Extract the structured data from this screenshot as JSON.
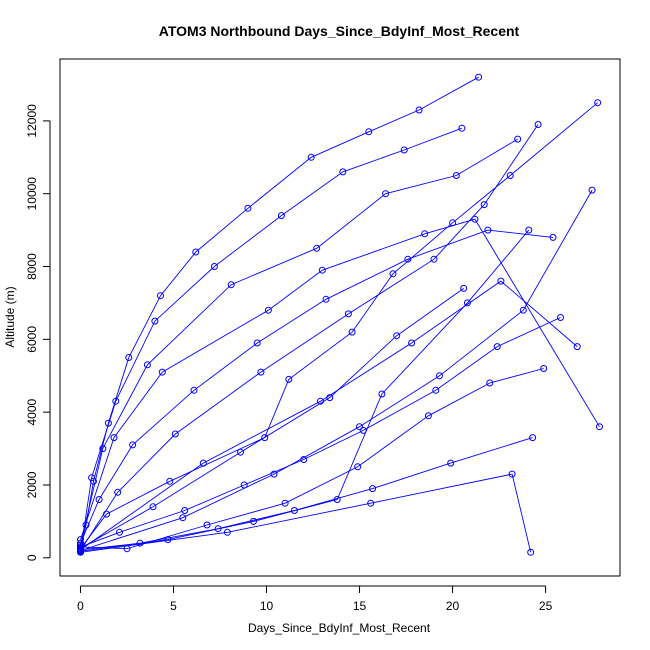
{
  "chart_data": {
    "type": "scatter",
    "title": "ATOM3 Northbound Days_Since_BdyInf_Most_Recent",
    "xlabel": "Days_Since_BdyInf_Most_Recent",
    "ylabel": "Altitude (m)",
    "xlim": [
      -1.1,
      29.0
    ],
    "ylim": [
      -500,
      13700
    ],
    "xticks": [
      0,
      5,
      10,
      15,
      20,
      25
    ],
    "yticks": [
      0,
      2000,
      4000,
      6000,
      8000,
      10000,
      12000
    ],
    "series_color": "#0000ff",
    "marker": "open-circle",
    "connected": true,
    "series": [
      {
        "x": [
          0.0,
          1.4,
          4.8,
          9.9,
          11.2,
          14.6,
          16.8,
          20.0,
          23.1,
          27.8
        ],
        "y": [
          250,
          1200,
          2100,
          3300,
          4900,
          6200,
          7800,
          9200,
          10500,
          12500
        ]
      },
      {
        "x": [
          0.0,
          0.3,
          0.7,
          1.5,
          2.6,
          4.3,
          6.2,
          9.0,
          12.4,
          15.5,
          18.2,
          21.4
        ],
        "y": [
          180,
          900,
          2100,
          3700,
          5500,
          7200,
          8400,
          9600,
          11000,
          11700,
          12300,
          13200
        ]
      },
      {
        "x": [
          0.0,
          2.1,
          5.6,
          8.8,
          12.0,
          15.2,
          19.1,
          22.4,
          25.8
        ],
        "y": [
          300,
          700,
          1300,
          2000,
          2700,
          3500,
          4600,
          5800,
          6600
        ]
      },
      {
        "x": [
          0.0,
          3.2,
          7.4,
          11.5,
          15.7,
          19.9,
          24.3
        ],
        "y": [
          220,
          400,
          800,
          1300,
          1900,
          2600,
          3300
        ]
      },
      {
        "x": [
          0.0,
          1.0,
          2.8,
          6.1,
          9.5,
          13.2,
          17.6,
          21.9,
          25.4
        ],
        "y": [
          400,
          1600,
          3100,
          4600,
          5900,
          7100,
          8200,
          9000,
          8800
        ]
      },
      {
        "x": [
          0.0,
          5.5,
          10.4,
          15.0,
          19.3,
          23.8,
          27.5
        ],
        "y": [
          200,
          1100,
          2300,
          3600,
          5000,
          6800,
          10100
        ]
      },
      {
        "x": [
          0.0,
          0.6,
          1.9,
          4.0,
          7.2,
          10.8,
          14.1,
          17.4,
          20.5
        ],
        "y": [
          160,
          2200,
          4300,
          6500,
          8000,
          9400,
          10600,
          11200,
          11800
        ]
      },
      {
        "x": [
          0.0,
          2.5,
          6.8,
          11.0,
          14.9,
          18.7,
          22.0,
          24.9
        ],
        "y": [
          300,
          250,
          900,
          1500,
          2500,
          3900,
          4800,
          5200
        ]
      },
      {
        "x": [
          0.0,
          4.7,
          9.3,
          13.8,
          16.2,
          20.8,
          24.1
        ],
        "y": [
          180,
          500,
          1000,
          1600,
          4500,
          7000,
          9000
        ]
      },
      {
        "x": [
          0.0,
          1.2,
          3.6,
          8.1,
          12.7,
          16.4,
          20.2,
          23.5
        ],
        "y": [
          350,
          3000,
          5300,
          7500,
          8500,
          10000,
          10500,
          11500
        ]
      },
      {
        "x": [
          0.0,
          6.6,
          12.9,
          17.8,
          22.6,
          26.7
        ],
        "y": [
          220,
          2600,
          4300,
          5900,
          7600,
          5800
        ]
      },
      {
        "x": [
          0.0,
          2.0,
          5.1,
          9.7,
          14.4,
          19.0,
          21.7,
          24.6
        ],
        "y": [
          200,
          1800,
          3400,
          5100,
          6700,
          8200,
          9700,
          11900
        ]
      },
      {
        "x": [
          0.0,
          3.9,
          8.6,
          13.4,
          17.0,
          20.6
        ],
        "y": [
          260,
          1400,
          2900,
          4400,
          6100,
          7400
        ]
      },
      {
        "x": [
          0.0,
          7.9,
          15.6,
          23.2,
          24.2
        ],
        "y": [
          150,
          700,
          1500,
          2300,
          150
        ]
      },
      {
        "x": [
          0.0,
          1.8,
          4.4,
          10.1,
          13.0,
          18.5,
          21.2,
          27.9
        ],
        "y": [
          500,
          3300,
          5100,
          6800,
          7900,
          8900,
          9300,
          3600
        ]
      }
    ]
  }
}
